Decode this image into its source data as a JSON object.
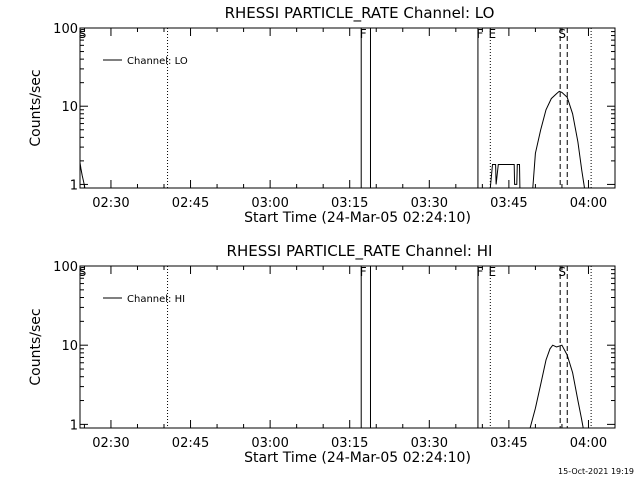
{
  "footer": {
    "timestamp": "15-Oct-2021 19:19"
  },
  "chart_data": [
    {
      "type": "line",
      "title": "RHESSI PARTICLE_RATE Channel: LO",
      "xlabel": "Start Time (24-Mar-05 02:24:10)",
      "ylabel": "Counts/sec",
      "yscale": "log",
      "xlim": [
        "02:24:10",
        "04:05:00"
      ],
      "ylim": [
        0.9,
        100
      ],
      "x_ticks": [
        "02:30",
        "02:45",
        "03:00",
        "03:15",
        "03:30",
        "03:45",
        "04:00"
      ],
      "y_ticks": [
        {
          "value": 1,
          "label": "1"
        },
        {
          "value": 10,
          "label": "10"
        },
        {
          "value": 100,
          "label": "100"
        }
      ],
      "legend": {
        "label": "Channel: LO",
        "position": "top-left"
      },
      "series": [
        {
          "name": "Channel: LO",
          "segments": [
            [
              [
                "02:24:10",
                1.9
              ],
              [
                "02:24:20",
                1.6
              ],
              [
                "02:24:35",
                1.3
              ],
              [
                "02:24:50",
                1.1
              ],
              [
                "02:25:05",
                0.9
              ]
            ],
            [
              [
                "03:41:30",
                0.9
              ],
              [
                "03:41:55",
                1.8
              ],
              [
                "03:42:30",
                1.8
              ],
              [
                "03:42:35",
                1.0
              ],
              [
                "03:43:00",
                1.8
              ],
              [
                "03:46:00",
                1.8
              ],
              [
                "03:46:05",
                1.0
              ],
              [
                "03:46:30",
                1.0
              ],
              [
                "03:46:35",
                1.8
              ],
              [
                "03:47:00",
                1.8
              ],
              [
                "03:47:05",
                0.9
              ]
            ],
            [
              [
                "03:49:30",
                0.9
              ],
              [
                "03:50:00",
                2.5
              ],
              [
                "03:51:00",
                5.0
              ],
              [
                "03:52:00",
                9.0
              ],
              [
                "03:53:00",
                12.5
              ],
              [
                "03:54:00",
                14.5
              ],
              [
                "03:54:30",
                15.5
              ],
              [
                "03:55:00",
                15.0
              ],
              [
                "03:56:00",
                13.0
              ],
              [
                "03:57:00",
                8.0
              ],
              [
                "03:58:00",
                3.5
              ],
              [
                "03:58:45",
                1.5
              ],
              [
                "03:59:15",
                0.9
              ]
            ]
          ]
        }
      ],
      "markers": [
        {
          "time": "02:24:15",
          "label": "S",
          "style": "none"
        },
        {
          "time": "02:40:40",
          "label": "",
          "style": "dotted"
        },
        {
          "time": "03:17:10",
          "label": "F",
          "style": "solid"
        },
        {
          "time": "03:18:55",
          "label": "",
          "style": "solid"
        },
        {
          "time": "03:39:10",
          "label": "F",
          "style": "solid"
        },
        {
          "time": "03:41:30",
          "label": "E",
          "style": "dotted"
        },
        {
          "time": "03:54:40",
          "label": "S",
          "style": "dashed"
        },
        {
          "time": "03:56:00",
          "label": "",
          "style": "dashed"
        },
        {
          "time": "04:00:30",
          "label": "",
          "style": "dotted"
        }
      ]
    },
    {
      "type": "line",
      "title": "RHESSI PARTICLE_RATE Channel: HI",
      "xlabel": "Start Time (24-Mar-05 02:24:10)",
      "ylabel": "Counts/sec",
      "yscale": "log",
      "xlim": [
        "02:24:10",
        "04:05:00"
      ],
      "ylim": [
        0.9,
        100
      ],
      "x_ticks": [
        "02:30",
        "02:45",
        "03:00",
        "03:15",
        "03:30",
        "03:45",
        "04:00"
      ],
      "y_ticks": [
        {
          "value": 1,
          "label": "1"
        },
        {
          "value": 10,
          "label": "10"
        },
        {
          "value": 100,
          "label": "100"
        }
      ],
      "legend": {
        "label": "Channel: HI",
        "position": "top-left"
      },
      "series": [
        {
          "name": "Channel: HI",
          "segments": [
            [
              [
                "03:49:00",
                0.9
              ],
              [
                "03:50:00",
                1.6
              ],
              [
                "03:51:00",
                3.2
              ],
              [
                "03:52:00",
                6.5
              ],
              [
                "03:52:45",
                9.0
              ],
              [
                "03:53:15",
                10.0
              ],
              [
                "03:54:00",
                9.5
              ],
              [
                "03:55:00",
                10.0
              ],
              [
                "03:56:00",
                7.5
              ],
              [
                "03:57:00",
                4.5
              ],
              [
                "03:58:00",
                2.0
              ],
              [
                "03:58:40",
                1.2
              ],
              [
                "03:59:00",
                0.9
              ]
            ]
          ]
        }
      ],
      "markers": [
        {
          "time": "02:24:15",
          "label": "S",
          "style": "none"
        },
        {
          "time": "02:40:40",
          "label": "",
          "style": "dotted"
        },
        {
          "time": "03:17:10",
          "label": "F",
          "style": "solid"
        },
        {
          "time": "03:18:55",
          "label": "",
          "style": "solid"
        },
        {
          "time": "03:39:10",
          "label": "F",
          "style": "solid"
        },
        {
          "time": "03:41:30",
          "label": "E",
          "style": "dotted"
        },
        {
          "time": "03:54:40",
          "label": "S",
          "style": "dashed"
        },
        {
          "time": "03:56:00",
          "label": "",
          "style": "dashed"
        },
        {
          "time": "04:00:30",
          "label": "",
          "style": "dotted"
        }
      ]
    }
  ]
}
